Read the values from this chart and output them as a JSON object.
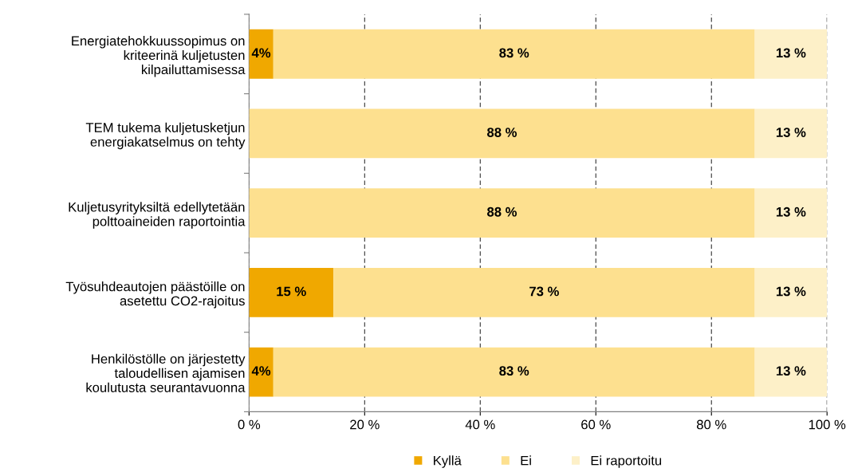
{
  "chart_data": {
    "type": "bar",
    "orientation": "horizontal",
    "stacked": true,
    "categories": [
      "Energiatehokkuussopimus on\nkriteerinä kuljetusten\nkilpailuttamisessa",
      "TEM tukema kuljetusketjun\nenergiakatselmus on tehty",
      "Kuljetusyrityksiltä edellytetään\npolttoaineiden raportointia",
      "Työsuhdeautojen päästöille on\nasetettu CO2-rajoitus",
      "Henkilöstölle on järjestetty\ntaloudellisen ajamisen\nkoulutusta seurantavuonna"
    ],
    "series": [
      {
        "name": "Kyllä",
        "color": "#f0a800",
        "values": [
          4.2,
          0,
          0,
          14.6,
          4.2
        ],
        "value_labels": [
          "4%",
          null,
          null,
          "15 %",
          "4%"
        ]
      },
      {
        "name": "Ei",
        "color": "#fde08f",
        "values": [
          83.3,
          87.5,
          87.5,
          72.9,
          83.3
        ],
        "value_labels": [
          "83 %",
          "88 %",
          "88 %",
          "73 %",
          "83 %"
        ]
      },
      {
        "name": "Ei raportoitu",
        "color": "#fdf0c8",
        "values": [
          12.5,
          12.5,
          12.5,
          12.5,
          12.5
        ],
        "value_labels": [
          "13 %",
          "13 %",
          "13 %",
          "13 %",
          "13 %"
        ]
      }
    ],
    "xlim": [
      0,
      100
    ],
    "xticks": [
      {
        "value": 0,
        "label": "0 %"
      },
      {
        "value": 20,
        "label": "20 %"
      },
      {
        "value": 40,
        "label": "40 %"
      },
      {
        "value": 60,
        "label": "60 %"
      },
      {
        "value": 80,
        "label": "80 %"
      },
      {
        "value": 100,
        "label": "100 %"
      }
    ],
    "grid": "x",
    "legend": "bottom"
  }
}
